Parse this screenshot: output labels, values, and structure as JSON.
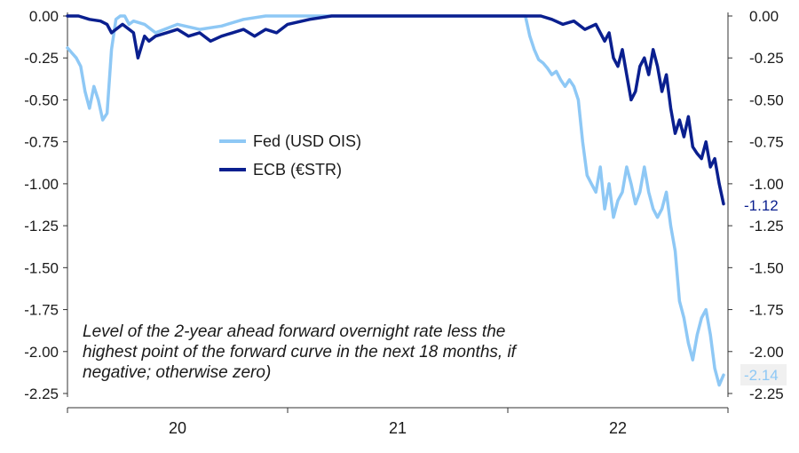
{
  "chart_data": {
    "type": "line",
    "title": "",
    "xlabel": "",
    "ylabel": "",
    "ylim": [
      -2.25,
      0.0
    ],
    "yticks": [
      "0.00",
      "-0.25",
      "-0.50",
      "-0.75",
      "-1.00",
      "-1.25",
      "-1.50",
      "-1.75",
      "-2.00",
      "-2.25"
    ],
    "ytick_values": [
      0.0,
      -0.25,
      -0.5,
      -0.75,
      -1.0,
      -1.25,
      -1.5,
      -1.75,
      -2.0,
      -2.25
    ],
    "xticks": [
      "20",
      "21",
      "22"
    ],
    "xlim": [
      2019.6,
      2022.6
    ],
    "axes": "left and right",
    "grid": false,
    "legend": "center-left",
    "annotation_lines": [
      "Level of the 2-year ahead forward overnight rate less the",
      "highest point of the forward curve in the next 18 months, if",
      "negative; otherwise zero)"
    ],
    "series": [
      {
        "name": "Fed (USD OIS)",
        "color": "#8ec8f5",
        "end_label": "-2.14",
        "x": [
          2019.6,
          2019.62,
          2019.64,
          2019.66,
          2019.68,
          2019.7,
          2019.72,
          2019.74,
          2019.76,
          2019.78,
          2019.8,
          2019.82,
          2019.84,
          2019.86,
          2019.88,
          2019.9,
          2019.95,
          2020.0,
          2020.1,
          2020.2,
          2020.3,
          2020.4,
          2020.5,
          2020.6,
          2020.7,
          2020.8,
          2020.9,
          2021.0,
          2021.2,
          2021.4,
          2021.6,
          2021.68,
          2021.7,
          2021.72,
          2021.74,
          2021.76,
          2021.78,
          2021.8,
          2021.82,
          2021.84,
          2021.86,
          2021.88,
          2021.9,
          2021.92,
          2021.94,
          2021.96,
          2021.98,
          2022.0,
          2022.02,
          2022.04,
          2022.06,
          2022.08,
          2022.1,
          2022.12,
          2022.14,
          2022.16,
          2022.18,
          2022.2,
          2022.22,
          2022.24,
          2022.26,
          2022.28,
          2022.3,
          2022.32,
          2022.34,
          2022.36,
          2022.38,
          2022.4,
          2022.42,
          2022.44,
          2022.46,
          2022.48,
          2022.5,
          2022.52,
          2022.54,
          2022.56,
          2022.58
        ],
        "values": [
          -0.19,
          -0.22,
          -0.25,
          -0.3,
          -0.45,
          -0.55,
          -0.42,
          -0.5,
          -0.62,
          -0.58,
          -0.2,
          -0.02,
          0.0,
          0.0,
          -0.05,
          -0.03,
          -0.05,
          -0.1,
          -0.05,
          -0.08,
          -0.06,
          -0.02,
          0.0,
          0.0,
          0.0,
          0.0,
          0.0,
          0.0,
          0.0,
          0.0,
          0.0,
          0.0,
          -0.12,
          -0.2,
          -0.26,
          -0.28,
          -0.31,
          -0.35,
          -0.33,
          -0.38,
          -0.42,
          -0.38,
          -0.42,
          -0.5,
          -0.75,
          -0.95,
          -1.0,
          -1.05,
          -0.9,
          -1.15,
          -1.0,
          -1.2,
          -1.1,
          -1.05,
          -0.9,
          -1.0,
          -1.12,
          -1.05,
          -0.9,
          -1.05,
          -1.15,
          -1.2,
          -1.15,
          -1.05,
          -1.25,
          -1.4,
          -1.7,
          -1.8,
          -1.95,
          -2.05,
          -1.9,
          -1.8,
          -1.75,
          -1.9,
          -2.1,
          -2.2,
          -2.14
        ]
      },
      {
        "name": "ECB (€STR)",
        "color": "#0a1f8f",
        "end_label": "-1.12",
        "x": [
          2019.6,
          2019.65,
          2019.7,
          2019.75,
          2019.78,
          2019.8,
          2019.85,
          2019.9,
          2019.92,
          2019.95,
          2019.97,
          2020.0,
          2020.05,
          2020.1,
          2020.15,
          2020.2,
          2020.25,
          2020.3,
          2020.35,
          2020.4,
          2020.45,
          2020.5,
          2020.55,
          2020.6,
          2020.7,
          2020.8,
          2020.9,
          2021.0,
          2021.2,
          2021.4,
          2021.6,
          2021.7,
          2021.75,
          2021.8,
          2021.85,
          2021.9,
          2021.95,
          2022.0,
          2022.04,
          2022.06,
          2022.08,
          2022.1,
          2022.12,
          2022.14,
          2022.16,
          2022.18,
          2022.2,
          2022.22,
          2022.24,
          2022.26,
          2022.28,
          2022.3,
          2022.32,
          2022.34,
          2022.36,
          2022.38,
          2022.4,
          2022.42,
          2022.44,
          2022.46,
          2022.48,
          2022.5,
          2022.52,
          2022.54,
          2022.56,
          2022.58
        ],
        "values": [
          0.0,
          0.0,
          -0.02,
          -0.03,
          -0.05,
          -0.1,
          -0.05,
          -0.1,
          -0.25,
          -0.12,
          -0.15,
          -0.12,
          -0.1,
          -0.08,
          -0.12,
          -0.1,
          -0.15,
          -0.12,
          -0.1,
          -0.08,
          -0.12,
          -0.08,
          -0.1,
          -0.05,
          -0.02,
          0.0,
          0.0,
          0.0,
          0.0,
          0.0,
          0.0,
          0.0,
          0.0,
          -0.02,
          -0.05,
          -0.03,
          -0.08,
          -0.05,
          -0.15,
          -0.1,
          -0.25,
          -0.3,
          -0.2,
          -0.35,
          -0.5,
          -0.45,
          -0.3,
          -0.25,
          -0.35,
          -0.2,
          -0.3,
          -0.45,
          -0.35,
          -0.55,
          -0.7,
          -0.62,
          -0.72,
          -0.6,
          -0.78,
          -0.82,
          -0.85,
          -0.75,
          -0.9,
          -0.85,
          -1.0,
          -1.12
        ]
      }
    ]
  }
}
